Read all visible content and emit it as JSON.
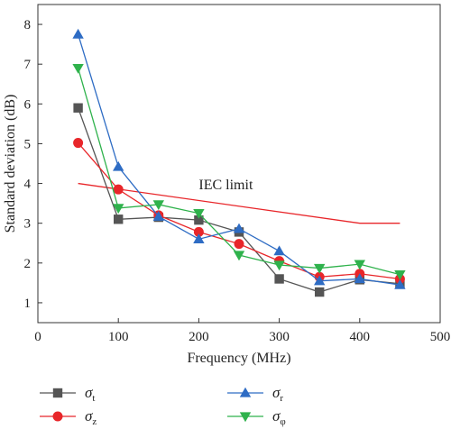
{
  "chart_data": {
    "type": "line",
    "xlabel": "Frequency (MHz)",
    "ylabel": "Standard deviation (dB)",
    "xlim": [
      0,
      500
    ],
    "ylim": [
      0.5,
      8.5
    ],
    "xticks": [
      0,
      100,
      200,
      300,
      400,
      500
    ],
    "yticks": [
      1,
      2,
      3,
      4,
      5,
      6,
      7,
      8
    ],
    "grid": false,
    "legend_position": "bottom",
    "x": [
      50,
      100,
      150,
      200,
      250,
      300,
      350,
      400,
      450
    ],
    "series": [
      {
        "name": "σ",
        "sub": "t",
        "color": "#555555",
        "marker": "square",
        "values": [
          5.9,
          3.1,
          3.15,
          3.08,
          2.78,
          1.6,
          1.27,
          1.58,
          1.48
        ]
      },
      {
        "name": "σ",
        "sub": "z",
        "color": "#e8262a",
        "marker": "circle",
        "values": [
          5.02,
          3.85,
          3.2,
          2.78,
          2.48,
          2.05,
          1.65,
          1.73,
          1.6
        ]
      },
      {
        "name": "σ",
        "sub": "r",
        "color": "#2e6cc4",
        "marker": "triangle-up",
        "values": [
          7.75,
          4.42,
          3.17,
          2.6,
          2.86,
          2.3,
          1.55,
          1.6,
          1.45
        ]
      },
      {
        "name": "σ",
        "sub": "φ",
        "color": "#2fb24c",
        "marker": "triangle-down",
        "values": [
          6.9,
          3.38,
          3.47,
          3.25,
          2.2,
          1.95,
          1.87,
          1.97,
          1.71
        ]
      }
    ],
    "reference_line": {
      "label": "IEC limit",
      "color": "#e8262a",
      "x": [
        50,
        400,
        450
      ],
      "y": [
        4.0,
        3.0,
        3.0
      ],
      "label_at": [
        200,
        3.85
      ]
    }
  }
}
